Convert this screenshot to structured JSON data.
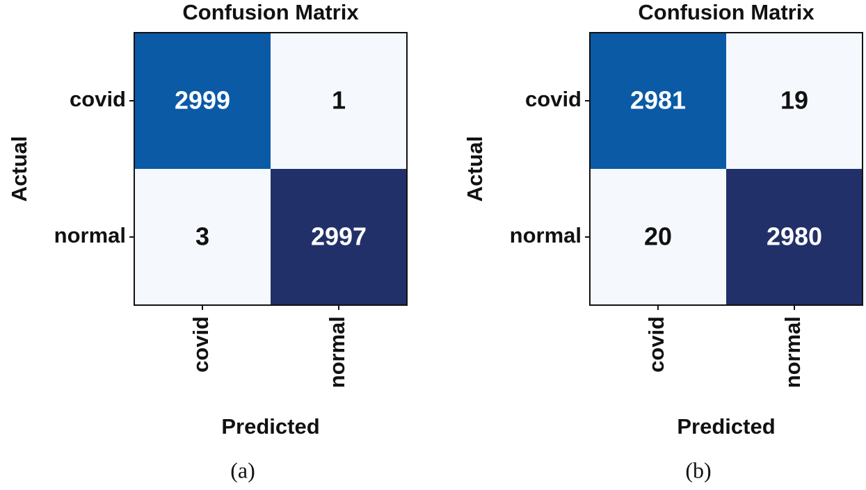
{
  "chart_data": [
    {
      "type": "heatmap",
      "title": "Confusion Matrix",
      "xlabel": "Predicted",
      "ylabel": "Actual",
      "x_categories": [
        "covid",
        "normal"
      ],
      "y_categories": [
        "covid",
        "normal"
      ],
      "values": [
        [
          2999,
          1
        ],
        [
          3,
          2997
        ]
      ],
      "colors": [
        [
          "#0b5aa6",
          "#f5f9fe"
        ],
        [
          "#f5f9fe",
          "#22306a"
        ]
      ],
      "caption": "(a)"
    },
    {
      "type": "heatmap",
      "title": "Confusion Matrix",
      "xlabel": "Predicted",
      "ylabel": "Actual",
      "x_categories": [
        "covid",
        "normal"
      ],
      "y_categories": [
        "covid",
        "normal"
      ],
      "values": [
        [
          2981,
          19
        ],
        [
          20,
          2980
        ]
      ],
      "colors": [
        [
          "#0b5aa6",
          "#f5f9fe"
        ],
        [
          "#f5f9fe",
          "#22306a"
        ]
      ],
      "caption": "(b)"
    }
  ]
}
